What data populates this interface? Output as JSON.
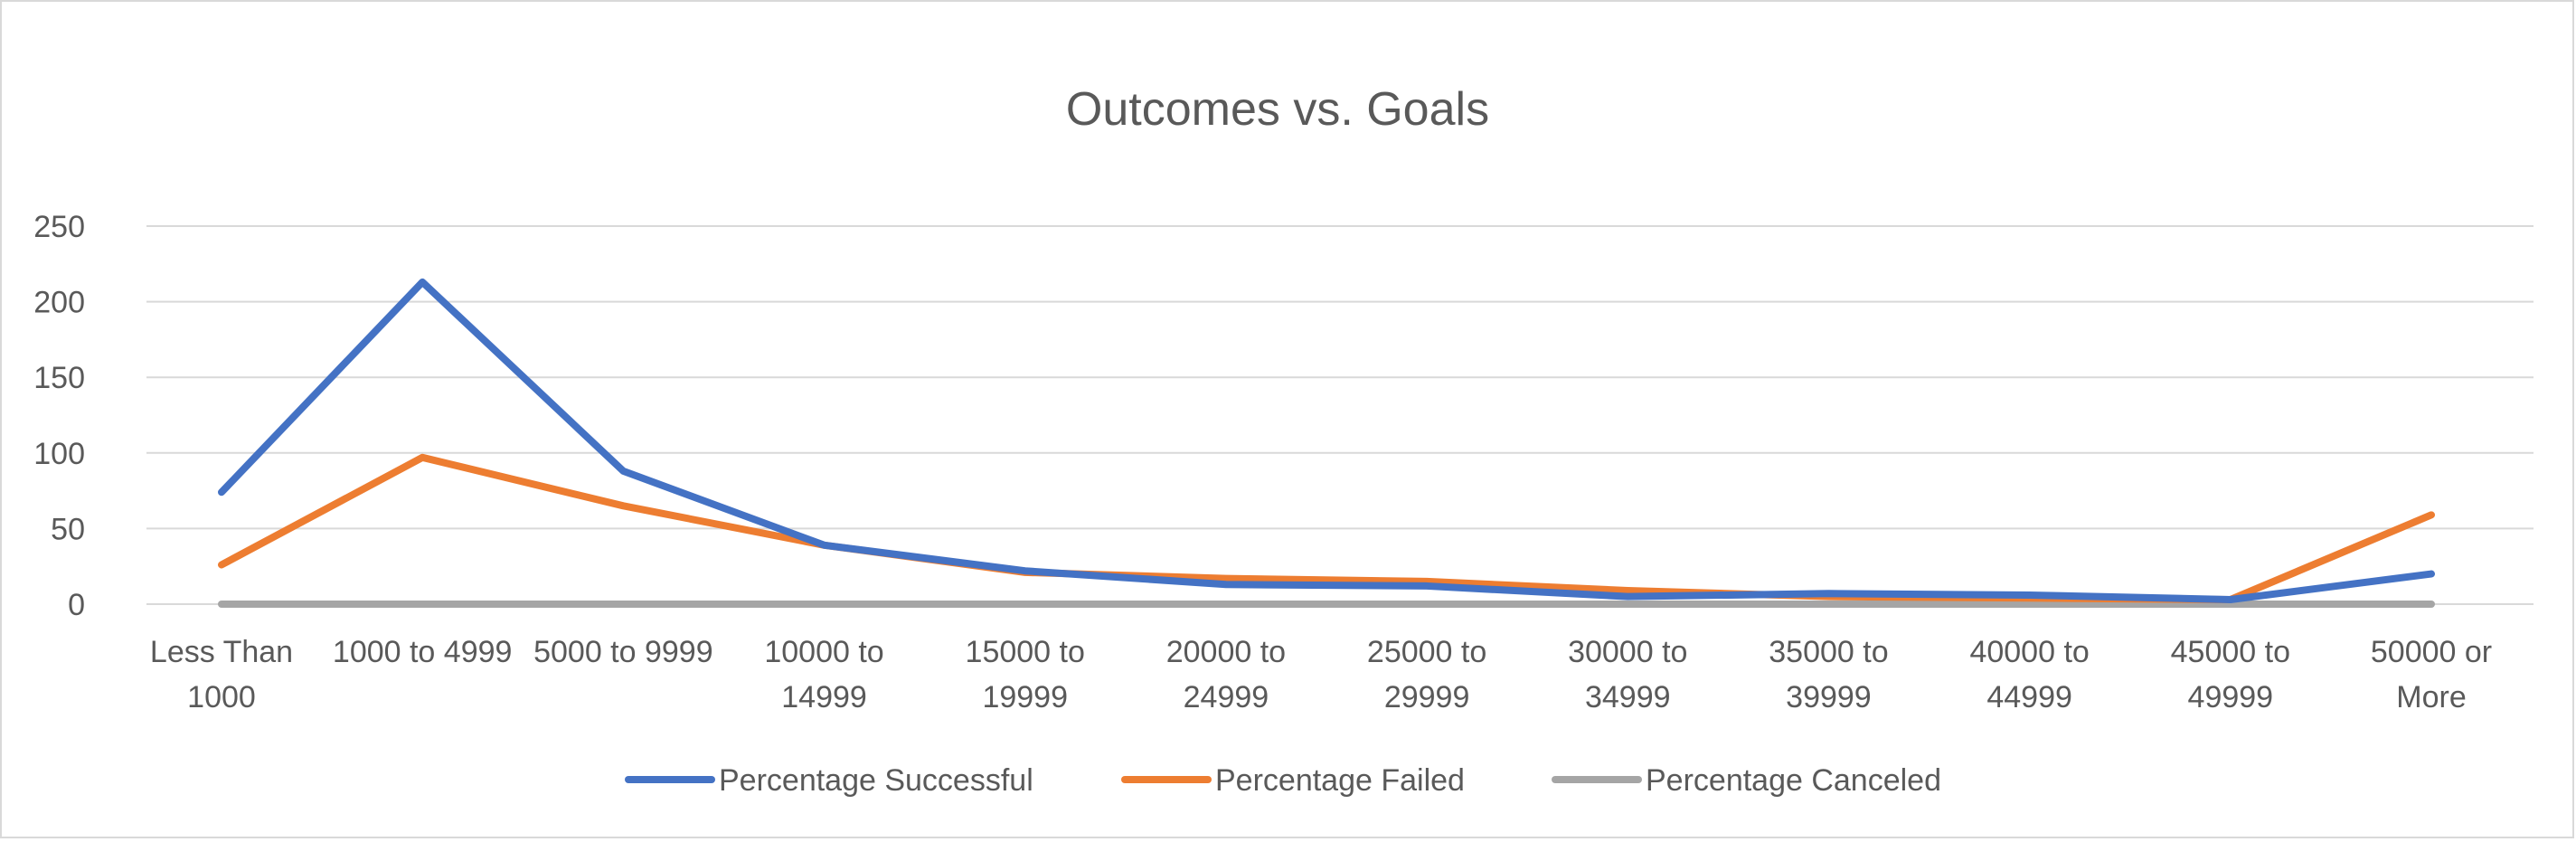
{
  "chart_data": {
    "type": "line",
    "title": "Outcomes vs. Goals",
    "xlabel": "",
    "ylabel": "",
    "ylim": [
      0,
      250
    ],
    "yticks": [
      0,
      50,
      100,
      150,
      200,
      250
    ],
    "grid": true,
    "legend_position": "bottom",
    "categories": [
      [
        "Less Than",
        "1000"
      ],
      [
        "1000 to 4999"
      ],
      [
        "5000 to 9999"
      ],
      [
        "10000 to",
        "14999"
      ],
      [
        "15000 to",
        "19999"
      ],
      [
        "20000 to",
        "24999"
      ],
      [
        "25000 to",
        "29999"
      ],
      [
        "30000 to",
        "34999"
      ],
      [
        "35000 to",
        "39999"
      ],
      [
        "40000 to",
        "44999"
      ],
      [
        "45000 to",
        "49999"
      ],
      [
        "50000 or",
        "More"
      ]
    ],
    "series": [
      {
        "name": "Percentage Successful",
        "color": "#4472C4",
        "values": [
          74,
          213,
          88,
          39,
          22,
          13,
          12,
          5,
          7,
          6,
          3,
          20
        ]
      },
      {
        "name": "Percentage Failed",
        "color": "#ED7D31",
        "values": [
          26,
          97,
          65,
          39,
          21,
          17,
          15,
          9,
          5,
          4,
          3,
          59
        ]
      },
      {
        "name": "Percentage Canceled",
        "color": "#A5A5A5",
        "values": [
          0,
          0,
          0,
          0,
          0,
          0,
          0,
          0,
          0,
          0,
          0,
          0
        ]
      }
    ]
  }
}
